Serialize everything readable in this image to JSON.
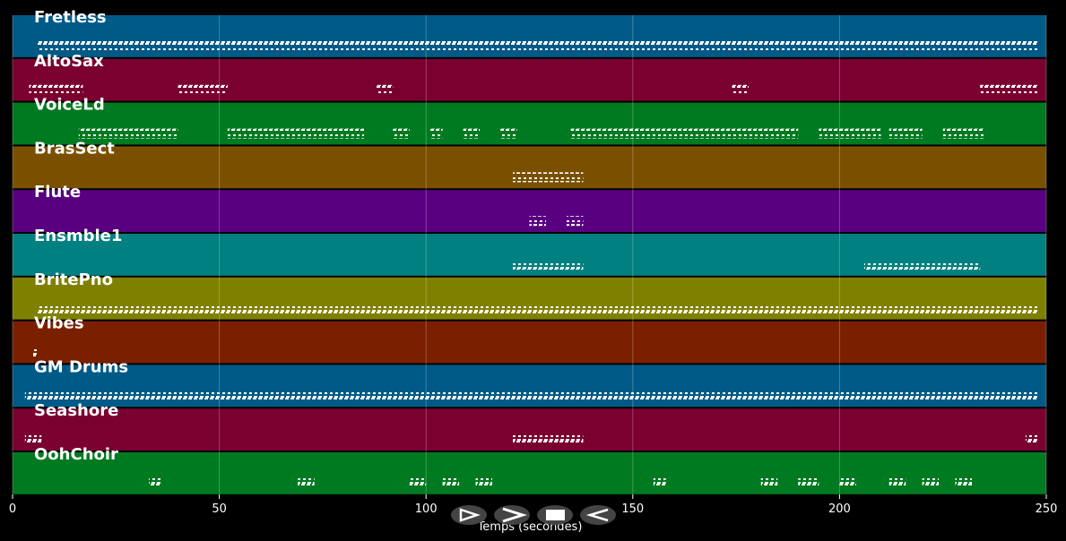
{
  "chart_data": {
    "type": "piano-roll",
    "x_label": "Temps (secondes)",
    "xlim": [
      0,
      250
    ],
    "xticks": [
      0,
      50,
      100,
      150,
      200,
      250
    ],
    "grid": true,
    "tracks": [
      {
        "name": "Fretless",
        "color": "#005a87",
        "segments": [
          [
            6,
            248
          ]
        ]
      },
      {
        "name": "AltoSax",
        "color": "#7a0030",
        "segments": [
          [
            4,
            17
          ],
          [
            40,
            52
          ],
          [
            88,
            92
          ],
          [
            174,
            178
          ],
          [
            234,
            248
          ]
        ]
      },
      {
        "name": "VoiceLd",
        "color": "#007a20",
        "segments": [
          [
            16,
            40
          ],
          [
            52,
            85
          ],
          [
            92,
            96
          ],
          [
            101,
            104
          ],
          [
            109,
            113
          ],
          [
            118,
            122
          ],
          [
            135,
            190
          ],
          [
            195,
            210
          ],
          [
            212,
            220
          ],
          [
            225,
            235
          ]
        ]
      },
      {
        "name": "BrasSect",
        "color": "#7a5000",
        "segments": [
          [
            121,
            138
          ]
        ]
      },
      {
        "name": "Flute",
        "color": "#580080",
        "segments": [
          [
            125,
            129
          ],
          [
            134,
            138
          ]
        ]
      },
      {
        "name": "Ensmble1",
        "color": "#008080",
        "segments": [
          [
            121,
            138
          ],
          [
            206,
            234
          ]
        ]
      },
      {
        "name": "BritePno",
        "color": "#808000",
        "segments": [
          [
            6,
            248
          ]
        ]
      },
      {
        "name": "Vibes",
        "color": "#7a2000",
        "segments": [
          [
            5,
            6
          ]
        ]
      },
      {
        "name": "GM Drums",
        "color": "#005a87",
        "segments": [
          [
            3,
            248
          ]
        ]
      },
      {
        "name": "Seashore",
        "color": "#7a0030",
        "segments": [
          [
            3,
            7
          ],
          [
            121,
            138
          ],
          [
            245,
            248
          ]
        ]
      },
      {
        "name": "OohChoir",
        "color": "#007a20",
        "segments": [
          [
            33,
            36
          ],
          [
            69,
            73
          ],
          [
            96,
            100
          ],
          [
            104,
            108
          ],
          [
            112,
            116
          ],
          [
            155,
            158
          ],
          [
            181,
            185
          ],
          [
            190,
            195
          ],
          [
            200,
            204
          ],
          [
            212,
            216
          ],
          [
            220,
            224
          ],
          [
            228,
            232
          ]
        ]
      }
    ]
  }
}
